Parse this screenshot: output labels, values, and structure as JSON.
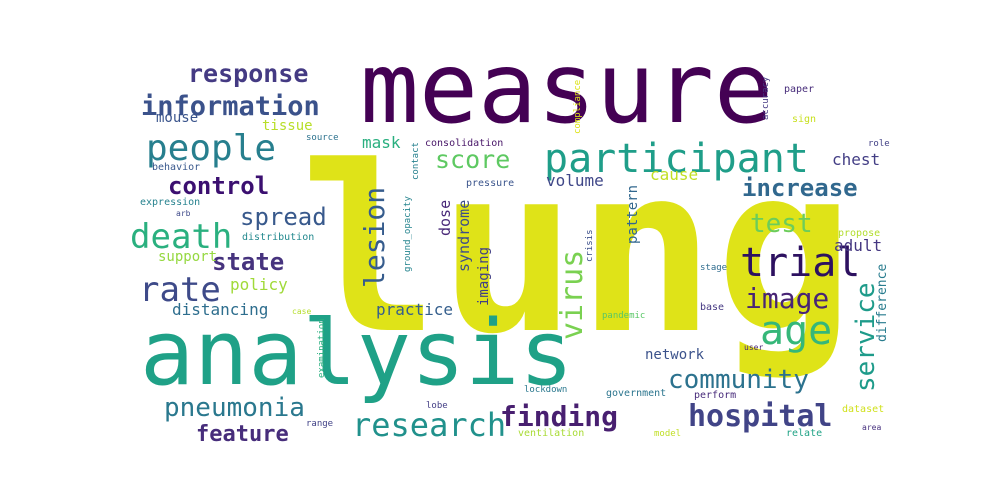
{
  "words": [
    {
      "id": "lung",
      "text": "lung",
      "color": "#dfe318"
    },
    {
      "id": "measure",
      "text": "measure",
      "color": "#440154"
    },
    {
      "id": "analysis",
      "text": "analysis",
      "color": "#1fa187"
    },
    {
      "id": "participant",
      "text": "participant",
      "color": "#1f9e89"
    },
    {
      "id": "people",
      "text": "people",
      "color": "#277f8e"
    },
    {
      "id": "information",
      "text": "information",
      "color": "#3b528b"
    },
    {
      "id": "response",
      "text": "response",
      "color": "#443a83"
    },
    {
      "id": "death",
      "text": "death",
      "color": "#2ab07f"
    },
    {
      "id": "control",
      "text": "control",
      "color": "#3b0f70"
    },
    {
      "id": "trial",
      "text": "trial",
      "color": "#2d1160"
    },
    {
      "id": "rate",
      "text": "rate",
      "color": "#3e4a89"
    },
    {
      "id": "image",
      "text": "image",
      "color": "#482475"
    },
    {
      "id": "age",
      "text": "age",
      "color": "#35b779"
    },
    {
      "id": "research",
      "text": "research",
      "color": "#21918c"
    },
    {
      "id": "hospital",
      "text": "hospital",
      "color": "#414487"
    },
    {
      "id": "finding",
      "text": "finding",
      "color": "#481f70"
    },
    {
      "id": "pneumonia",
      "text": "pneumonia",
      "color": "#2a788e"
    },
    {
      "id": "community",
      "text": "community",
      "color": "#2c728e"
    },
    {
      "id": "increase",
      "text": "increase",
      "color": "#31688e"
    },
    {
      "id": "score",
      "text": "score",
      "color": "#5ec962"
    },
    {
      "id": "state",
      "text": "state",
      "color": "#46337e"
    },
    {
      "id": "spread",
      "text": "spread",
      "color": "#38598c"
    },
    {
      "id": "test",
      "text": "test",
      "color": "#6ccd5a"
    },
    {
      "id": "feature",
      "text": "feature",
      "color": "#472d7b"
    },
    {
      "id": "lesion",
      "text": "lesion",
      "color": "#365c8d"
    },
    {
      "id": "virus",
      "text": "virus",
      "color": "#7ad151"
    },
    {
      "id": "service",
      "text": "service",
      "color": "#1e9b8a"
    },
    {
      "id": "policy",
      "text": "policy",
      "color": "#a0da39"
    },
    {
      "id": "distancing",
      "text": "distancing",
      "color": "#2e6e8e"
    },
    {
      "id": "practice",
      "text": "practice",
      "color": "#355f8d"
    },
    {
      "id": "support",
      "text": "support",
      "color": "#95d840"
    },
    {
      "id": "volume",
      "text": "volume",
      "color": "#3f4788"
    },
    {
      "id": "chest",
      "text": "chest",
      "color": "#433e85"
    },
    {
      "id": "adult",
      "text": "adult",
      "color": "#453781"
    },
    {
      "id": "tissue",
      "text": "tissue",
      "color": "#b8de29"
    },
    {
      "id": "mouse",
      "text": "mouse",
      "color": "#3a548c"
    },
    {
      "id": "mask",
      "text": "mask",
      "color": "#29af7f"
    },
    {
      "id": "network",
      "text": "network",
      "color": "#3b528b"
    },
    {
      "id": "cause",
      "text": "cause",
      "color": "#c2df23"
    },
    {
      "id": "dose",
      "text": "dose",
      "color": "#482878"
    },
    {
      "id": "syndrome",
      "text": "syndrome",
      "color": "#3d4e8a"
    },
    {
      "id": "pattern",
      "text": "pattern",
      "color": "#31678e"
    },
    {
      "id": "imaging",
      "text": "imaging",
      "color": "#424086"
    },
    {
      "id": "difference",
      "text": "difference",
      "color": "#287c8e"
    },
    {
      "id": "behavior",
      "text": "behavior",
      "color": "#38588c"
    },
    {
      "id": "expression",
      "text": "expression",
      "color": "#26828e"
    },
    {
      "id": "distribution",
      "text": "distribution",
      "color": "#23898e"
    },
    {
      "id": "consolidation",
      "text": "consolidation",
      "color": "#481668"
    },
    {
      "id": "pressure",
      "text": "pressure",
      "color": "#3a548c"
    },
    {
      "id": "compliance",
      "text": "compliance",
      "color": "#dde318"
    },
    {
      "id": "accuracy",
      "text": "accuracy",
      "color": "#443983"
    },
    {
      "id": "paper",
      "text": "paper",
      "color": "#472c7a"
    },
    {
      "id": "sign",
      "text": "sign",
      "color": "#c8e020"
    },
    {
      "id": "role",
      "text": "role",
      "color": "#424186"
    },
    {
      "id": "source",
      "text": "source",
      "color": "#2c728e"
    },
    {
      "id": "contact",
      "text": "contact",
      "color": "#26818e"
    },
    {
      "id": "propose",
      "text": "propose",
      "color": "#b2dd2d"
    },
    {
      "id": "stage",
      "text": "stage",
      "color": "#2f6c8e"
    },
    {
      "id": "crisis",
      "text": "crisis",
      "color": "#3c4f8a"
    },
    {
      "id": "ground_opacity",
      "text": "ground_opacity",
      "color": "#25848e"
    },
    {
      "id": "examination",
      "text": "examination",
      "color": "#29af7f"
    },
    {
      "id": "pandemic",
      "text": "pandemic",
      "color": "#58c765"
    },
    {
      "id": "base",
      "text": "base",
      "color": "#453882"
    },
    {
      "id": "user",
      "text": "user",
      "color": "#482677"
    },
    {
      "id": "case",
      "text": "case",
      "color": "#b5de2b"
    },
    {
      "id": "arb",
      "text": "arb",
      "color": "#3e4989"
    },
    {
      "id": "lockdown",
      "text": "lockdown",
      "color": "#2a788e"
    },
    {
      "id": "lobe",
      "text": "lobe",
      "color": "#433e85"
    },
    {
      "id": "government",
      "text": "government",
      "color": "#2b758e"
    },
    {
      "id": "perform",
      "text": "perform",
      "color": "#472a7a"
    },
    {
      "id": "dataset",
      "text": "dataset",
      "color": "#d0e11c"
    },
    {
      "id": "range",
      "text": "range",
      "color": "#414287"
    },
    {
      "id": "ventilation",
      "text": "ventilation",
      "color": "#a8db34"
    },
    {
      "id": "model",
      "text": "model",
      "color": "#c0df25"
    },
    {
      "id": "relate",
      "text": "relate",
      "color": "#20a386"
    },
    {
      "id": "area",
      "text": "area",
      "color": "#46307e"
    }
  ]
}
